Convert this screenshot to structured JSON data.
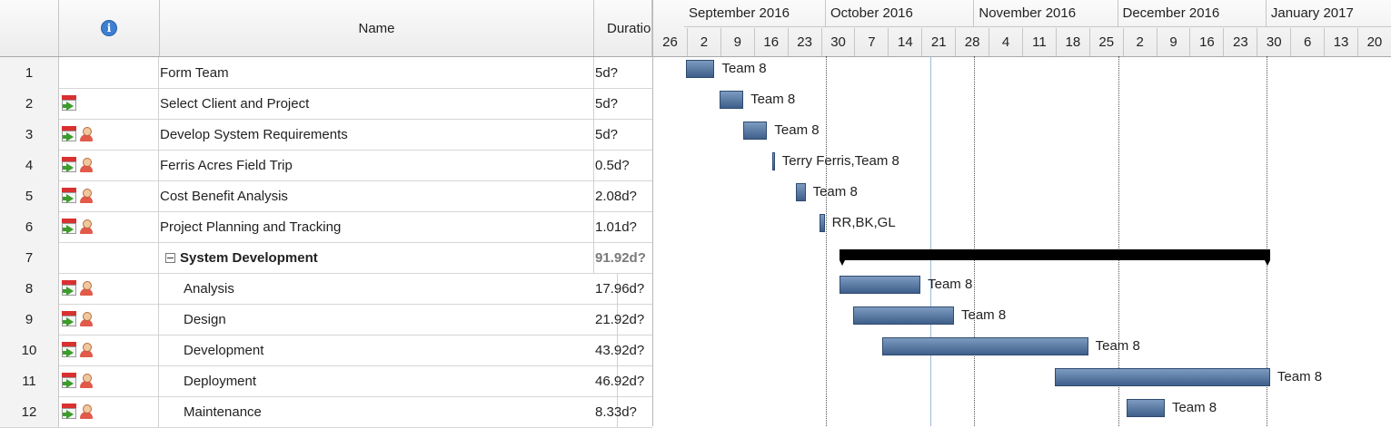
{
  "grid": {
    "headers": {
      "number": "",
      "info": "i",
      "name": "Name",
      "duration": "Duratio"
    },
    "rows": [
      {
        "num": "1",
        "name": "Form Team",
        "duration": "5d?",
        "icons": []
      },
      {
        "num": "2",
        "name": "Select Client and Project",
        "duration": "5d?",
        "icons": [
          "calendar-constraint-icon"
        ]
      },
      {
        "num": "3",
        "name": "Develop System Requirements",
        "duration": "5d?",
        "icons": [
          "calendar-constraint-icon",
          "resource-icon"
        ]
      },
      {
        "num": "4",
        "name": "Ferris Acres Field Trip",
        "duration": "0.5d?",
        "icons": [
          "calendar-constraint-icon",
          "resource-icon"
        ]
      },
      {
        "num": "5",
        "name": "Cost Benefit Analysis",
        "duration": "2.08d?",
        "icons": [
          "calendar-constraint-icon",
          "resource-icon"
        ]
      },
      {
        "num": "6",
        "name": "Project Planning and Tracking",
        "duration": "1.01d?",
        "icons": [
          "calendar-constraint-icon",
          "resource-icon"
        ]
      },
      {
        "num": "7",
        "name": "System Development",
        "duration": "91.92d?",
        "icons": [],
        "summary": true
      },
      {
        "num": "8",
        "name": "Analysis",
        "duration": "17.96d?",
        "icons": [
          "calendar-constraint-icon",
          "resource-icon"
        ],
        "child": true
      },
      {
        "num": "9",
        "name": "Design",
        "duration": "21.92d?",
        "icons": [
          "calendar-constraint-icon",
          "resource-icon"
        ],
        "child": true
      },
      {
        "num": "10",
        "name": "Development",
        "duration": "43.92d?",
        "icons": [
          "calendar-constraint-icon",
          "resource-icon"
        ],
        "child": true
      },
      {
        "num": "11",
        "name": "Deployment",
        "duration": "46.92d?",
        "icons": [
          "calendar-constraint-icon",
          "resource-icon"
        ],
        "child": true
      },
      {
        "num": "12",
        "name": "Maintenance",
        "duration": "8.33d?",
        "icons": [
          "calendar-constraint-icon",
          "resource-icon"
        ],
        "child": true
      }
    ]
  },
  "timeline": {
    "months": [
      "September 2016",
      "October 2016",
      "November 2016",
      "December 2016",
      "January 2017"
    ],
    "weeks": [
      "26",
      "2",
      "9",
      "16",
      "23",
      "30",
      "7",
      "14",
      "21",
      "28",
      "4",
      "11",
      "18",
      "25",
      "2",
      "9",
      "16",
      "23",
      "30",
      "6",
      "13",
      "20"
    ],
    "tasks": [
      {
        "row": 1,
        "start": "2016-09-01",
        "end": "2016-09-07",
        "label": "Team 8"
      },
      {
        "row": 2,
        "start": "2016-09-08",
        "end": "2016-09-13",
        "label": "Team 8"
      },
      {
        "row": 3,
        "start": "2016-09-13",
        "end": "2016-09-18",
        "label": "Team 8"
      },
      {
        "row": 4,
        "start": "2016-09-19",
        "end": "2016-09-19",
        "label": "Terry Ferris,Team 8"
      },
      {
        "row": 5,
        "start": "2016-09-24",
        "end": "2016-09-26",
        "label": "Team 8"
      },
      {
        "row": 6,
        "start": "2016-09-29",
        "end": "2016-09-30",
        "label": "RR,BK,GL"
      },
      {
        "row": 7,
        "start": "2016-10-03",
        "end": "2017-01-01",
        "label": "",
        "summary": true
      },
      {
        "row": 8,
        "start": "2016-10-03",
        "end": "2016-10-20",
        "label": "Team 8"
      },
      {
        "row": 9,
        "start": "2016-10-06",
        "end": "2016-10-27",
        "label": "Team 8"
      },
      {
        "row": 10,
        "start": "2016-10-12",
        "end": "2016-11-24",
        "label": "Team 8"
      },
      {
        "row": 11,
        "start": "2016-11-17",
        "end": "2017-01-01",
        "label": "Team 8"
      },
      {
        "row": 12,
        "start": "2016-12-02",
        "end": "2016-12-10",
        "label": "Team 8"
      }
    ],
    "today": "2016-10-22"
  },
  "colors": {
    "bar": "#4f6f99",
    "summary": "#000000",
    "header": "#eeeeee"
  }
}
